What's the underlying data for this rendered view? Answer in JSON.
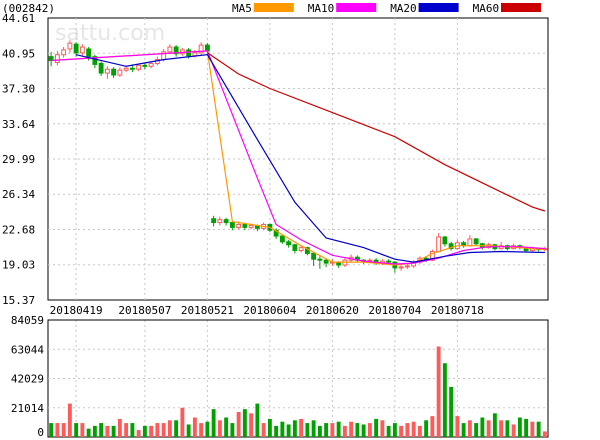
{
  "stock_code": "(002842)",
  "watermark": "sattu.com",
  "legend": [
    {
      "label": "MA5",
      "color": "#ff9900"
    },
    {
      "label": "MA10",
      "color": "#ff00ff"
    },
    {
      "label": "MA20",
      "color": "#0000cc"
    },
    {
      "label": "MA60",
      "color": "#cc0000"
    }
  ],
  "colors": {
    "up": "#ff5a5a",
    "down": "#00a000",
    "grid": "#c8c8c8",
    "axis": "#000000"
  },
  "chart_data": [
    {
      "type": "candlestick",
      "y_ticks": [
        "44.61",
        "40.95",
        "37.30",
        "33.64",
        "29.99",
        "26.34",
        "22.68",
        "19.03",
        "15.37"
      ],
      "ylim": [
        15.37,
        44.61
      ],
      "x_ticks": [
        {
          "label": "20180419",
          "index": 4
        },
        {
          "label": "20180507",
          "index": 15
        },
        {
          "label": "20180521",
          "index": 25
        },
        {
          "label": "20180604",
          "index": 35
        },
        {
          "label": "20180620",
          "index": 45
        },
        {
          "label": "20180704",
          "index": 55
        },
        {
          "label": "20180718",
          "index": 65
        }
      ],
      "bar_count": 80,
      "candles": [
        {
          "o": 40.6,
          "c": 40.2,
          "h": 41.1,
          "l": 39.6
        },
        {
          "o": 40.0,
          "c": 40.8,
          "h": 41.2,
          "l": 39.7
        },
        {
          "o": 40.8,
          "c": 41.3,
          "h": 41.6,
          "l": 40.5
        },
        {
          "o": 41.4,
          "c": 42.0,
          "h": 42.3,
          "l": 41.0
        },
        {
          "o": 41.9,
          "c": 41.0,
          "h": 42.1,
          "l": 40.6
        },
        {
          "o": 41.0,
          "c": 41.6,
          "h": 41.9,
          "l": 40.7
        },
        {
          "o": 41.4,
          "c": 40.6,
          "h": 41.6,
          "l": 40.2
        },
        {
          "o": 40.6,
          "c": 39.8,
          "h": 40.8,
          "l": 39.4
        },
        {
          "o": 39.9,
          "c": 38.9,
          "h": 40.1,
          "l": 38.6
        },
        {
          "o": 38.9,
          "c": 39.3,
          "h": 39.6,
          "l": 38.3
        },
        {
          "o": 39.3,
          "c": 38.7,
          "h": 39.5,
          "l": 38.4
        },
        {
          "o": 38.7,
          "c": 39.2,
          "h": 39.5,
          "l": 38.5
        },
        {
          "o": 39.2,
          "c": 39.4,
          "h": 39.7,
          "l": 39.0
        },
        {
          "o": 39.4,
          "c": 39.3,
          "h": 39.8,
          "l": 39.0
        },
        {
          "o": 39.3,
          "c": 39.7,
          "h": 39.9,
          "l": 39.1
        },
        {
          "o": 39.7,
          "c": 39.6,
          "h": 40.0,
          "l": 39.3
        },
        {
          "o": 39.6,
          "c": 39.9,
          "h": 40.1,
          "l": 39.4
        },
        {
          "o": 39.9,
          "c": 40.3,
          "h": 40.6,
          "l": 39.7
        },
        {
          "o": 40.3,
          "c": 41.1,
          "h": 41.4,
          "l": 40.1
        },
        {
          "o": 41.1,
          "c": 41.6,
          "h": 41.9,
          "l": 40.9
        },
        {
          "o": 41.6,
          "c": 40.9,
          "h": 41.8,
          "l": 40.6
        },
        {
          "o": 40.9,
          "c": 41.3,
          "h": 41.5,
          "l": 40.7
        },
        {
          "o": 41.3,
          "c": 40.7,
          "h": 41.5,
          "l": 40.4
        },
        {
          "o": 40.7,
          "c": 41.0,
          "h": 41.3,
          "l": 40.5
        },
        {
          "o": 41.0,
          "c": 41.8,
          "h": 42.1,
          "l": 40.8
        },
        {
          "o": 41.8,
          "c": 41.2,
          "h": 42.0,
          "l": 40.9
        },
        {
          "o": 23.8,
          "c": 23.4,
          "h": 24.1,
          "l": 23.0
        },
        {
          "o": 23.4,
          "c": 23.7,
          "h": 24.0,
          "l": 23.1
        },
        {
          "o": 23.7,
          "c": 23.4,
          "h": 23.9,
          "l": 23.1
        },
        {
          "o": 23.4,
          "c": 22.9,
          "h": 23.6,
          "l": 22.6
        },
        {
          "o": 22.9,
          "c": 23.2,
          "h": 23.5,
          "l": 22.7
        },
        {
          "o": 23.2,
          "c": 22.9,
          "h": 23.4,
          "l": 22.6
        },
        {
          "o": 22.9,
          "c": 23.1,
          "h": 23.3,
          "l": 22.7
        },
        {
          "o": 23.1,
          "c": 22.8,
          "h": 23.2,
          "l": 22.5
        },
        {
          "o": 22.8,
          "c": 23.2,
          "h": 23.4,
          "l": 22.6
        },
        {
          "o": 23.2,
          "c": 22.6,
          "h": 23.3,
          "l": 22.4
        },
        {
          "o": 22.6,
          "c": 22.0,
          "h": 22.8,
          "l": 21.7
        },
        {
          "o": 22.0,
          "c": 21.4,
          "h": 22.1,
          "l": 21.2
        },
        {
          "o": 21.4,
          "c": 21.1,
          "h": 21.6,
          "l": 20.8
        },
        {
          "o": 21.1,
          "c": 20.5,
          "h": 21.2,
          "l": 20.2
        },
        {
          "o": 20.5,
          "c": 20.8,
          "h": 21.0,
          "l": 20.3
        },
        {
          "o": 20.8,
          "c": 20.2,
          "h": 20.9,
          "l": 20.0
        },
        {
          "o": 20.2,
          "c": 19.6,
          "h": 20.3,
          "l": 18.9
        },
        {
          "o": 19.6,
          "c": 19.5,
          "h": 19.9,
          "l": 18.6
        },
        {
          "o": 19.5,
          "c": 19.2,
          "h": 19.7,
          "l": 18.8
        },
        {
          "o": 19.2,
          "c": 19.3,
          "h": 19.6,
          "l": 18.9
        },
        {
          "o": 19.3,
          "c": 19.0,
          "h": 19.4,
          "l": 18.7
        },
        {
          "o": 19.0,
          "c": 19.5,
          "h": 19.7,
          "l": 18.8
        },
        {
          "o": 19.5,
          "c": 19.8,
          "h": 20.1,
          "l": 19.3
        },
        {
          "o": 19.8,
          "c": 19.5,
          "h": 20.0,
          "l": 19.3
        },
        {
          "o": 19.5,
          "c": 19.4,
          "h": 19.6,
          "l": 19.1
        },
        {
          "o": 19.4,
          "c": 19.5,
          "h": 19.7,
          "l": 19.2
        },
        {
          "o": 19.5,
          "c": 19.2,
          "h": 19.7,
          "l": 19.0
        },
        {
          "o": 19.2,
          "c": 19.4,
          "h": 19.6,
          "l": 19.0
        },
        {
          "o": 19.4,
          "c": 19.3,
          "h": 19.6,
          "l": 19.1
        },
        {
          "o": 19.3,
          "c": 18.7,
          "h": 19.4,
          "l": 18.2
        },
        {
          "o": 18.7,
          "c": 18.8,
          "h": 19.1,
          "l": 18.4
        },
        {
          "o": 18.8,
          "c": 18.9,
          "h": 19.2,
          "l": 18.6
        },
        {
          "o": 18.9,
          "c": 19.3,
          "h": 19.5,
          "l": 18.7
        },
        {
          "o": 19.3,
          "c": 19.7,
          "h": 19.9,
          "l": 19.1
        },
        {
          "o": 19.7,
          "c": 19.5,
          "h": 19.9,
          "l": 19.3
        },
        {
          "o": 19.5,
          "c": 20.4,
          "h": 20.6,
          "l": 19.4
        },
        {
          "o": 20.4,
          "c": 21.9,
          "h": 22.3,
          "l": 20.3
        },
        {
          "o": 21.9,
          "c": 21.2,
          "h": 22.0,
          "l": 20.9
        },
        {
          "o": 21.2,
          "c": 20.7,
          "h": 21.4,
          "l": 20.5
        },
        {
          "o": 20.7,
          "c": 21.3,
          "h": 21.6,
          "l": 20.6
        },
        {
          "o": 21.3,
          "c": 21.0,
          "h": 21.5,
          "l": 20.8
        },
        {
          "o": 21.0,
          "c": 21.7,
          "h": 22.1,
          "l": 20.9
        },
        {
          "o": 21.7,
          "c": 21.2,
          "h": 21.8,
          "l": 21.0
        },
        {
          "o": 21.2,
          "c": 20.8,
          "h": 21.3,
          "l": 20.6
        },
        {
          "o": 20.8,
          "c": 21.1,
          "h": 21.3,
          "l": 20.7
        },
        {
          "o": 21.1,
          "c": 20.7,
          "h": 21.2,
          "l": 20.5
        },
        {
          "o": 20.7,
          "c": 21.0,
          "h": 21.4,
          "l": 20.6
        },
        {
          "o": 21.0,
          "c": 20.7,
          "h": 21.1,
          "l": 20.5
        },
        {
          "o": 20.7,
          "c": 21.0,
          "h": 21.2,
          "l": 20.6
        },
        {
          "o": 21.0,
          "c": 20.8,
          "h": 21.1,
          "l": 20.6
        },
        {
          "o": 20.8,
          "c": 20.5,
          "h": 20.9,
          "l": 20.3
        },
        {
          "o": 20.5,
          "c": 20.7,
          "h": 20.9,
          "l": 20.4
        },
        {
          "o": 20.7,
          "c": 20.6,
          "h": 20.8,
          "l": 20.4
        },
        {
          "o": 20.6,
          "c": 20.7,
          "h": 20.9,
          "l": 20.4
        }
      ],
      "moving_averages": {
        "MA5": [
          [
            0,
            40.2
          ],
          [
            25,
            41.2
          ],
          [
            29,
            23.5
          ],
          [
            35,
            22.9
          ],
          [
            40,
            21.0
          ],
          [
            45,
            19.3
          ],
          [
            50,
            19.3
          ],
          [
            55,
            19.0
          ],
          [
            58,
            19.2
          ],
          [
            61,
            20.2
          ],
          [
            65,
            21.0
          ],
          [
            70,
            21.0
          ],
          [
            75,
            20.8
          ],
          [
            79,
            20.6
          ]
        ],
        "MA10": [
          [
            0,
            40.2
          ],
          [
            25,
            41.2
          ],
          [
            33,
            28.0
          ],
          [
            36,
            23.2
          ],
          [
            40,
            21.6
          ],
          [
            45,
            20.0
          ],
          [
            50,
            19.4
          ],
          [
            55,
            19.1
          ],
          [
            58,
            19.2
          ],
          [
            62,
            19.7
          ],
          [
            66,
            20.5
          ],
          [
            70,
            20.9
          ],
          [
            75,
            20.9
          ],
          [
            79,
            20.7
          ]
        ],
        "MA20": [
          [
            4,
            40.8
          ],
          [
            12,
            39.6
          ],
          [
            18,
            40.3
          ],
          [
            25,
            40.8
          ],
          [
            33,
            32.0
          ],
          [
            39,
            25.5
          ],
          [
            44,
            21.8
          ],
          [
            50,
            20.8
          ],
          [
            55,
            19.6
          ],
          [
            58,
            19.3
          ],
          [
            63,
            19.9
          ],
          [
            67,
            20.3
          ],
          [
            72,
            20.4
          ],
          [
            79,
            20.3
          ]
        ],
        "MA60": [
          [
            25,
            41.0
          ],
          [
            30,
            38.8
          ],
          [
            35,
            37.3
          ],
          [
            45,
            34.8
          ],
          [
            55,
            32.3
          ],
          [
            63,
            29.4
          ],
          [
            70,
            27.2
          ],
          [
            77,
            25.0
          ],
          [
            79,
            24.6
          ]
        ]
      }
    },
    {
      "type": "bar",
      "y_ticks": [
        "84059",
        "63044",
        "42029",
        "21014",
        "0"
      ],
      "ylim": [
        0,
        84059
      ],
      "volumes": [
        10000,
        10000,
        10000,
        24000,
        10000,
        10000,
        6000,
        8000,
        10000,
        8000,
        8000,
        13000,
        10000,
        10000,
        5000,
        8000,
        8000,
        10000,
        10000,
        12000,
        12000,
        21000,
        9000,
        14000,
        10000,
        11000,
        20000,
        12000,
        14000,
        10000,
        18000,
        20000,
        17000,
        24000,
        10000,
        13000,
        8000,
        11000,
        9000,
        12000,
        13000,
        10000,
        12000,
        8000,
        10000,
        10000,
        11000,
        8000,
        11000,
        10000,
        9000,
        10000,
        13000,
        12000,
        8000,
        10000,
        8000,
        10000,
        11000,
        8000,
        12000,
        15000,
        65000,
        53000,
        36000,
        15000,
        10000,
        12000,
        10000,
        14000,
        12000,
        17000,
        12000,
        12000,
        9000,
        14000,
        13000,
        11000,
        11000,
        4000
      ]
    }
  ]
}
